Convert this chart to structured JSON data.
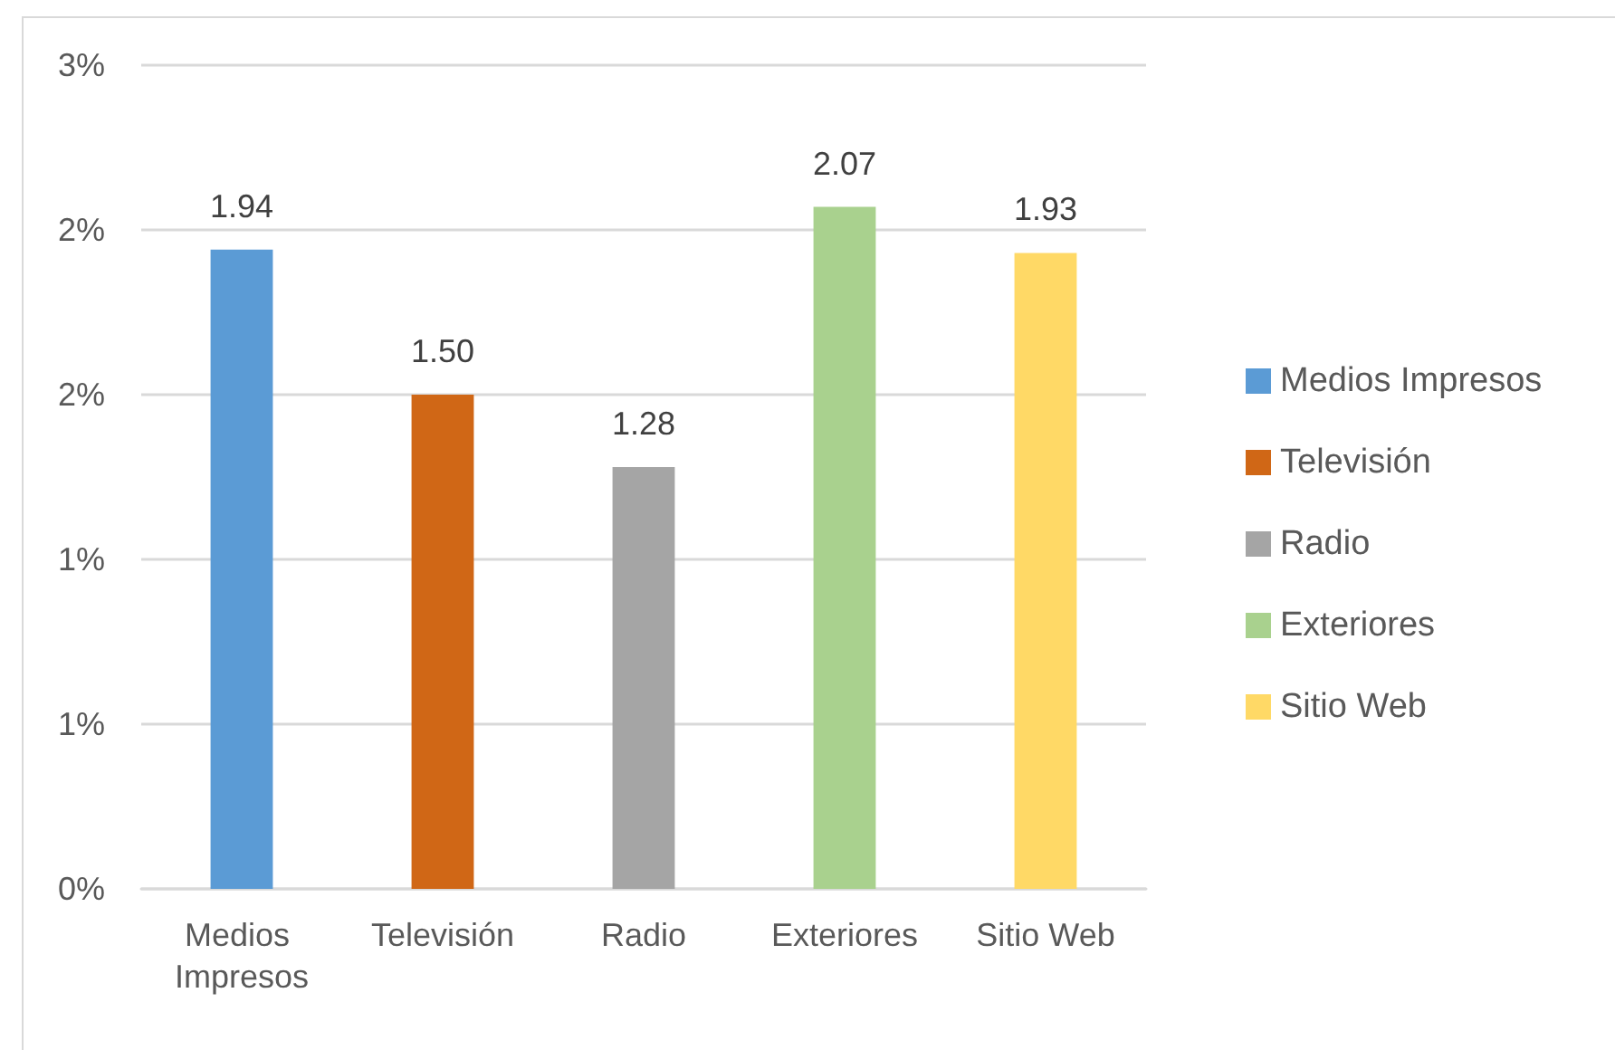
{
  "chart_data": {
    "type": "bar",
    "categories": [
      "Medios Impresos",
      "Televisión",
      "Radio",
      "Exteriores",
      "Sitio Web"
    ],
    "series": [
      {
        "name": "Medios Impresos",
        "color": "#5b9bd5",
        "values": [
          1.94,
          null,
          null,
          null,
          null
        ],
        "value_labels": [
          "1.94",
          null,
          null,
          null,
          null
        ]
      },
      {
        "name": "Televisión",
        "color": "#d06716",
        "values": [
          null,
          1.5,
          null,
          null,
          null
        ],
        "value_labels": [
          null,
          "1.50",
          null,
          null,
          null
        ]
      },
      {
        "name": "Radio",
        "color": "#a5a5a5",
        "values": [
          null,
          null,
          1.28,
          null,
          null
        ],
        "value_labels": [
          null,
          null,
          "1.28",
          null,
          null
        ]
      },
      {
        "name": "Exteriores",
        "color": "#a9d18e",
        "values": [
          null,
          null,
          null,
          2.07,
          null
        ],
        "value_labels": [
          null,
          null,
          null,
          "2.07",
          null
        ]
      },
      {
        "name": "Sitio Web",
        "color": "#ffd966",
        "values": [
          null,
          null,
          null,
          null,
          1.93
        ],
        "value_labels": [
          null,
          null,
          null,
          null,
          "1.93"
        ]
      }
    ],
    "ylim": [
      0,
      2.5
    ],
    "yticks": [
      {
        "value": 0,
        "label": "0%"
      },
      {
        "value": 0.5,
        "label": "1%"
      },
      {
        "value": 1,
        "label": "1%"
      },
      {
        "value": 1.5,
        "label": "2%"
      },
      {
        "value": 2,
        "label": "2%"
      },
      {
        "value": 2.5,
        "label": "3%"
      }
    ],
    "grid": "y",
    "legend": "right"
  }
}
